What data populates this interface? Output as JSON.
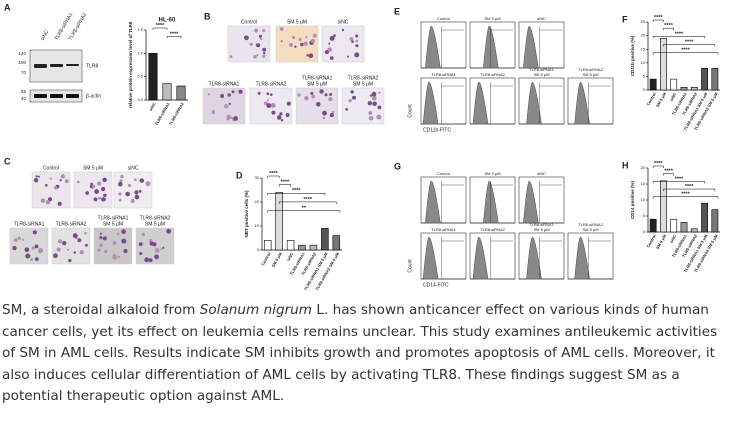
{
  "figure": {
    "panel_a": {
      "letter": "A",
      "lanes": [
        "siNC",
        "TLR8-siRNA1",
        "TLR8-siRNA2"
      ],
      "markers": [
        "140",
        "100",
        "70",
        "55",
        "40"
      ],
      "bands": [
        "TLR8",
        "β-actin"
      ]
    },
    "chart_a": {
      "type": "bar",
      "title": "HL-60",
      "ylabel": "relative protein expression level of TLR8",
      "categories": [
        "siNC",
        "TLR8-siRNA1",
        "TLR8-siRNA2"
      ],
      "values": [
        1.0,
        0.35,
        0.3
      ],
      "colors": [
        "#222222",
        "#bbbbbb",
        "#888888"
      ],
      "ylim": [
        0,
        1.5
      ],
      "yticks": [
        {
          "value": 0,
          "label": "0.0"
        },
        {
          "value": 0.5,
          "label": "0.5"
        },
        {
          "value": 1,
          "label": "1.0"
        },
        {
          "value": 1.5,
          "label": "1.5"
        }
      ],
      "significance": [
        "****",
        "****"
      ]
    },
    "panel_b": {
      "letter": "B",
      "images": [
        [
          "Control"
        ],
        [
          "SM 5 μM"
        ],
        [
          "siNC"
        ],
        [
          "TLR8-siRNA1"
        ],
        [
          "TLR8-siRNA2"
        ],
        [
          "TLR8-siRNA1",
          "SM 5 μM"
        ],
        [
          "TLR8-siRNA2",
          "SM 5 μM"
        ]
      ]
    },
    "panel_c": {
      "letter": "C",
      "images": [
        [
          "Control"
        ],
        [
          "SM 5 μM"
        ],
        [
          "siNC"
        ],
        [
          "TLR8-siRNA1"
        ],
        [
          "TLR8-siRNA2"
        ],
        [
          "TLR8-siRNA1",
          "SM 5 μM"
        ],
        [
          "TLR8-siRNA2",
          "SM 5 μM"
        ]
      ]
    },
    "chart_d": {
      "letter": "D",
      "type": "bar",
      "ylabel": "NBT positive cells (%)",
      "categories": [
        "Control",
        "SM 5 μM",
        "siNC",
        "TLR8-siRNA1",
        "TLR8-siRNA2",
        "TLR8-siRNA1 SM 5 μM",
        "TLR8-siRNA2 SM 5 μM"
      ],
      "values": [
        4,
        24,
        4,
        2,
        2,
        9,
        6
      ],
      "colors": [
        "#ffffff",
        "#dddddd",
        "#ffffff",
        "#999999",
        "#bbbbbb",
        "#555555",
        "#777777"
      ],
      "ylim": [
        0,
        30
      ],
      "yticks": [
        0,
        10,
        20,
        30
      ],
      "significance": [
        "****",
        "****",
        "****",
        "****",
        "**"
      ]
    },
    "panel_e": {
      "letter": "E",
      "plots": [
        [
          "Control"
        ],
        [
          "SM 5 μM"
        ],
        [
          "siNC"
        ],
        [
          "TLR8-siRNA1"
        ],
        [
          "TLR8-siRNA2"
        ],
        [
          "TLR8-siRNA1",
          "SM 5 μM"
        ],
        [
          "TLR8-siRNA2",
          "SM 5 μM"
        ]
      ],
      "ylabel": "Count",
      "xlabel": "CD11b-FITC"
    },
    "chart_f": {
      "letter": "F",
      "type": "bar",
      "ylabel": "CD11b positive (%)",
      "categories": [
        "Control",
        "SM 5 μM",
        "siNC",
        "TLR8-siRNA1",
        "TLR8-siRNA2",
        "TLR8-siRNA1 SM 5 μM",
        "TLR8-siRNA2 SM 5 μM"
      ],
      "values": [
        4,
        19,
        4,
        1,
        1,
        8,
        8
      ],
      "colors": [
        "#222222",
        "#dddddd",
        "#ffffff",
        "#999999",
        "#bbbbbb",
        "#555555",
        "#777777"
      ],
      "ylim": [
        0,
        25
      ],
      "yticks": [
        0,
        5,
        10,
        15,
        20,
        25
      ],
      "significance": [
        "****",
        "****",
        "****",
        "****",
        "****"
      ]
    },
    "panel_g": {
      "letter": "G",
      "plots": [
        [
          "Control"
        ],
        [
          "SM 5 μM"
        ],
        [
          "siNC"
        ],
        [
          "TLR8-siRNA1"
        ],
        [
          "TLR8-siRNA2"
        ],
        [
          "TLR8-siRNA1",
          "SM 5 μM"
        ],
        [
          "TLR8-siRNA2",
          "SM 5 μM"
        ]
      ],
      "ylabel": "Count",
      "xlabel": "CD14-FITC"
    },
    "chart_h": {
      "letter": "H",
      "type": "bar",
      "ylabel": "CD14 positive (%)",
      "categories": [
        "Control",
        "SM 5 μM",
        "siNC",
        "TLR8-siRNA1",
        "TLR8-siRNA2",
        "TLR8-siRNA1 SM 5 μM",
        "TLR8-siRNA2 SM 5 μM"
      ],
      "values": [
        4,
        16,
        4,
        3,
        1,
        9,
        7
      ],
      "colors": [
        "#222222",
        "#dddddd",
        "#ffffff",
        "#999999",
        "#bbbbbb",
        "#555555",
        "#777777"
      ],
      "ylim": [
        0,
        20
      ],
      "yticks": [
        0,
        5,
        10,
        15,
        20
      ],
      "significance": [
        "****",
        "****",
        "****",
        "****",
        "****"
      ]
    }
  },
  "abstract": {
    "before": "SM, a steroidal alkaloid from ",
    "italic": "Solanum nigrum",
    "after": " L. has shown anticancer effect on various kinds of human cancer cells, yet its effect on leukemia cells remains unclear. This study examines antileukemic activities of SM in AML cells. Results indicate SM inhibits growth and promotes apoptosis of AML cells. Moreover, it also induces cellular differentiation of AML cells by activating TLR8. These findings suggest SM as a potential therapeutic option against AML."
  }
}
